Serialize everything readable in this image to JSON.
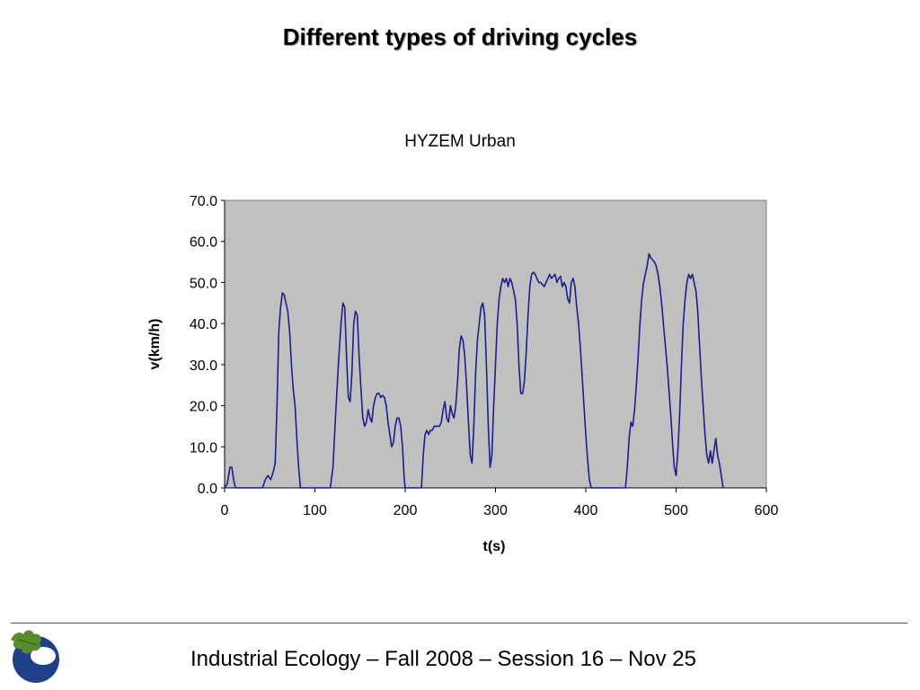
{
  "slide": {
    "title": "Different types of driving cycles",
    "footer": "Industrial Ecology – Fall 2008 – Session 16 – Nov 25"
  },
  "colors": {
    "series": "#1a1f8c",
    "plot_background": "#c0c0c0",
    "logo_blue": "#1f3f8a",
    "logo_leaf": "#5c8a2e"
  },
  "chart_data": {
    "type": "line",
    "title": "HYZEM Urban",
    "xlabel": "t(s)",
    "ylabel": "v(km/h)",
    "xlim": [
      0,
      600
    ],
    "ylim": [
      0,
      70
    ],
    "xticks": [
      "0",
      "100",
      "200",
      "300",
      "400",
      "500",
      "600"
    ],
    "yticks": [
      "0.0",
      "10.0",
      "20.0",
      "30.0",
      "40.0",
      "50.0",
      "60.0",
      "70.0"
    ],
    "grid": false,
    "legend": "none",
    "series": [
      {
        "points": [
          [
            0,
            0
          ],
          [
            3,
            1
          ],
          [
            6,
            5
          ],
          [
            8,
            5
          ],
          [
            10,
            2
          ],
          [
            12,
            0
          ],
          [
            42,
            0
          ],
          [
            45,
            2
          ],
          [
            48,
            3
          ],
          [
            51,
            2
          ],
          [
            54,
            4
          ],
          [
            56,
            6
          ],
          [
            58,
            20
          ],
          [
            60,
            38
          ],
          [
            62,
            44
          ],
          [
            64,
            47.5
          ],
          [
            66,
            47
          ],
          [
            68,
            45
          ],
          [
            70,
            43
          ],
          [
            72,
            38
          ],
          [
            74,
            30
          ],
          [
            76,
            24
          ],
          [
            78,
            20
          ],
          [
            80,
            12
          ],
          [
            82,
            5
          ],
          [
            84,
            0
          ],
          [
            117,
            0
          ],
          [
            120,
            5
          ],
          [
            123,
            18
          ],
          [
            126,
            30
          ],
          [
            129,
            40
          ],
          [
            131,
            45
          ],
          [
            133,
            44
          ],
          [
            135,
            32
          ],
          [
            137,
            22
          ],
          [
            139,
            21
          ],
          [
            141,
            28
          ],
          [
            143,
            40
          ],
          [
            145,
            43
          ],
          [
            147,
            42
          ],
          [
            149,
            32
          ],
          [
            151,
            24
          ],
          [
            153,
            17
          ],
          [
            155,
            15
          ],
          [
            157,
            16
          ],
          [
            159,
            19
          ],
          [
            161,
            17
          ],
          [
            163,
            16
          ],
          [
            165,
            20
          ],
          [
            167,
            22
          ],
          [
            169,
            23
          ],
          [
            171,
            23
          ],
          [
            173,
            22
          ],
          [
            175,
            22.5
          ],
          [
            177,
            22
          ],
          [
            179,
            20
          ],
          [
            181,
            16
          ],
          [
            183,
            13
          ],
          [
            185,
            10
          ],
          [
            187,
            11
          ],
          [
            189,
            15
          ],
          [
            191,
            17
          ],
          [
            193,
            17
          ],
          [
            195,
            15
          ],
          [
            197,
            10
          ],
          [
            199,
            2
          ],
          [
            200,
            0
          ],
          [
            218,
            0
          ],
          [
            220,
            8
          ],
          [
            222,
            13
          ],
          [
            224,
            14
          ],
          [
            226,
            13
          ],
          [
            228,
            14
          ],
          [
            230,
            14
          ],
          [
            232,
            15
          ],
          [
            234,
            15
          ],
          [
            236,
            15
          ],
          [
            238,
            15
          ],
          [
            240,
            16
          ],
          [
            242,
            19
          ],
          [
            244,
            21
          ],
          [
            246,
            17
          ],
          [
            248,
            16
          ],
          [
            250,
            20
          ],
          [
            252,
            18
          ],
          [
            254,
            17
          ],
          [
            256,
            20
          ],
          [
            258,
            26
          ],
          [
            260,
            34
          ],
          [
            262,
            37
          ],
          [
            264,
            36
          ],
          [
            266,
            32
          ],
          [
            268,
            25
          ],
          [
            270,
            16
          ],
          [
            272,
            8
          ],
          [
            274,
            6
          ],
          [
            276,
            15
          ],
          [
            278,
            28
          ],
          [
            280,
            36
          ],
          [
            282,
            40
          ],
          [
            284,
            44
          ],
          [
            286,
            45
          ],
          [
            288,
            42
          ],
          [
            290,
            30
          ],
          [
            292,
            15
          ],
          [
            294,
            5
          ],
          [
            296,
            8
          ],
          [
            298,
            20
          ],
          [
            300,
            30
          ],
          [
            302,
            40
          ],
          [
            304,
            46
          ],
          [
            306,
            49
          ],
          [
            308,
            51
          ],
          [
            310,
            50
          ],
          [
            312,
            51
          ],
          [
            314,
            49
          ],
          [
            316,
            51
          ],
          [
            318,
            50
          ],
          [
            320,
            48
          ],
          [
            322,
            46
          ],
          [
            324,
            40
          ],
          [
            326,
            30
          ],
          [
            328,
            23
          ],
          [
            330,
            23
          ],
          [
            332,
            26
          ],
          [
            334,
            33
          ],
          [
            336,
            42
          ],
          [
            338,
            49
          ],
          [
            340,
            52
          ],
          [
            342,
            52.5
          ],
          [
            344,
            52
          ],
          [
            346,
            51
          ],
          [
            348,
            50
          ],
          [
            350,
            50
          ],
          [
            352,
            49.5
          ],
          [
            354,
            49
          ],
          [
            356,
            50
          ],
          [
            358,
            51
          ],
          [
            360,
            52
          ],
          [
            362,
            51
          ],
          [
            364,
            51.5
          ],
          [
            366,
            52
          ],
          [
            368,
            50
          ],
          [
            370,
            51
          ],
          [
            372,
            51.5
          ],
          [
            374,
            49
          ],
          [
            376,
            50
          ],
          [
            378,
            49
          ],
          [
            380,
            46
          ],
          [
            382,
            45
          ],
          [
            384,
            50
          ],
          [
            386,
            51
          ],
          [
            388,
            49
          ],
          [
            390,
            44
          ],
          [
            392,
            40
          ],
          [
            394,
            34
          ],
          [
            396,
            27
          ],
          [
            398,
            20
          ],
          [
            400,
            13
          ],
          [
            402,
            7
          ],
          [
            404,
            2
          ],
          [
            406,
            0
          ],
          [
            444,
            0
          ],
          [
            446,
            5
          ],
          [
            448,
            12
          ],
          [
            450,
            16
          ],
          [
            452,
            15
          ],
          [
            454,
            19
          ],
          [
            456,
            25
          ],
          [
            458,
            32
          ],
          [
            460,
            40
          ],
          [
            462,
            46
          ],
          [
            464,
            50
          ],
          [
            466,
            52
          ],
          [
            468,
            54
          ],
          [
            470,
            57
          ],
          [
            472,
            56
          ],
          [
            474,
            55.5
          ],
          [
            476,
            55
          ],
          [
            478,
            54
          ],
          [
            480,
            52
          ],
          [
            482,
            49
          ],
          [
            484,
            45
          ],
          [
            486,
            40
          ],
          [
            488,
            35
          ],
          [
            490,
            30
          ],
          [
            492,
            24
          ],
          [
            494,
            18
          ],
          [
            496,
            11
          ],
          [
            498,
            5
          ],
          [
            500,
            3
          ],
          [
            502,
            9
          ],
          [
            504,
            18
          ],
          [
            506,
            30
          ],
          [
            508,
            40
          ],
          [
            510,
            46
          ],
          [
            512,
            50
          ],
          [
            514,
            52
          ],
          [
            516,
            51
          ],
          [
            518,
            52
          ],
          [
            520,
            50
          ],
          [
            522,
            48
          ],
          [
            524,
            43
          ],
          [
            526,
            35
          ],
          [
            528,
            27
          ],
          [
            530,
            20
          ],
          [
            532,
            13
          ],
          [
            534,
            8
          ],
          [
            536,
            6
          ],
          [
            538,
            9
          ],
          [
            540,
            6
          ],
          [
            542,
            9
          ],
          [
            544,
            12
          ],
          [
            546,
            8
          ],
          [
            548,
            6
          ],
          [
            550,
            3
          ],
          [
            552,
            0
          ]
        ]
      }
    ]
  }
}
